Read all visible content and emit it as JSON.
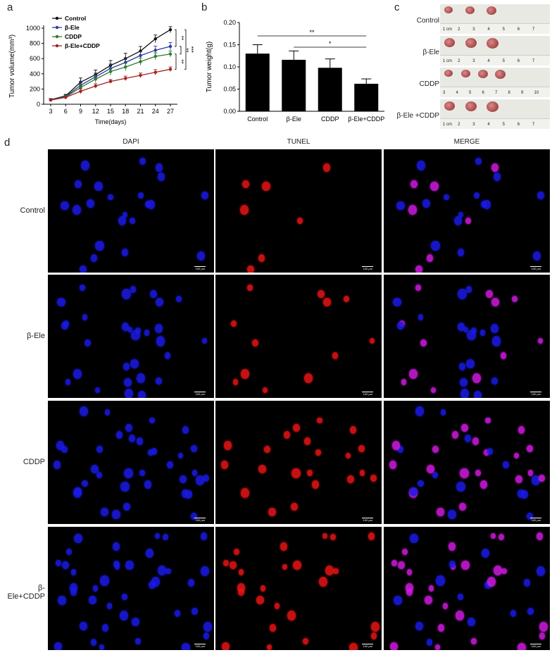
{
  "panels": {
    "a": "a",
    "b": "b",
    "c": "c",
    "d": "d"
  },
  "chart_data": [
    {
      "type": "line",
      "panel": "a",
      "ylabel": "Tumor volume(mm³)",
      "xlabel": "Time(days)",
      "x": [
        3,
        6,
        9,
        12,
        15,
        18,
        21,
        24,
        27
      ],
      "ylim": [
        0,
        1000
      ],
      "yticks": [
        0,
        200,
        400,
        600,
        800,
        1000
      ],
      "series": [
        {
          "name": "Control",
          "color": "#111111",
          "values": [
            60,
            110,
            290,
            390,
            510,
            600,
            700,
            860,
            980
          ],
          "err": [
            15,
            20,
            55,
            60,
            65,
            70,
            60,
            50,
            40
          ]
        },
        {
          "name": "β-Ele",
          "color": "#2a3aa0",
          "values": [
            60,
            100,
            250,
            360,
            470,
            550,
            640,
            710,
            760
          ],
          "err": [
            15,
            20,
            45,
            50,
            60,
            55,
            50,
            55,
            50
          ]
        },
        {
          "name": "CDDP",
          "color": "#2e7a2e",
          "values": [
            55,
            95,
            220,
            330,
            430,
            490,
            560,
            630,
            660
          ],
          "err": [
            15,
            20,
            40,
            45,
            50,
            50,
            45,
            45,
            40
          ]
        },
        {
          "name": "β-Ele+CDDP",
          "color": "#a32020",
          "values": [
            55,
            90,
            170,
            240,
            300,
            340,
            380,
            420,
            460
          ],
          "err": [
            10,
            15,
            30,
            30,
            25,
            30,
            30,
            35,
            30
          ]
        }
      ],
      "significance": [
        "**",
        "**",
        "**",
        "***"
      ]
    },
    {
      "type": "bar",
      "panel": "b",
      "ylabel": "Tumor weight(g)",
      "categories": [
        "Control",
        "β-Ele",
        "CDDP",
        "β-Ele+CDDP"
      ],
      "values": [
        0.13,
        0.116,
        0.098,
        0.062
      ],
      "err": [
        0.02,
        0.02,
        0.02,
        0.011
      ],
      "ylim": [
        0,
        0.2
      ],
      "yticks": [
        "0.00",
        "0.05",
        "0.10",
        "0.15",
        "0.20"
      ],
      "significance": [
        {
          "from": "Control",
          "to": "β-Ele+CDDP",
          "label": "**"
        },
        {
          "from": "β-Ele",
          "to": "β-Ele+CDDP",
          "label": "*"
        }
      ]
    }
  ],
  "tumor_photos": {
    "rows": [
      {
        "label": "Control",
        "ruler": [
          "1 cm",
          "2",
          "3",
          "4",
          "5",
          "6",
          "7"
        ],
        "tumors": 3
      },
      {
        "label": "β-Ele",
        "ruler": [
          "1 cm",
          "2",
          "3",
          "4",
          "5",
          "6",
          "7"
        ],
        "tumors": 3
      },
      {
        "label": "CDDP",
        "ruler": [
          "3",
          "4",
          "5",
          "6",
          "7",
          "8",
          "9",
          "10"
        ],
        "tumors": 4
      },
      {
        "label": "β-Ele +CDDP",
        "ruler": [
          "1 cm",
          "2",
          "3",
          "4",
          "5",
          "6",
          "7"
        ],
        "tumors": 3
      }
    ]
  },
  "microscopy": {
    "columns": [
      "DAPI",
      "TUNEL",
      "MERGE"
    ],
    "rows": [
      "Control",
      "β-Ele",
      "CDDP",
      "β-Ele+CDDP"
    ],
    "scale_label": "100 µm",
    "colors": {
      "dapi": "#1a1ae8",
      "tunel": "#e81414",
      "merge": "#d01ae0",
      "background": "#000000"
    }
  }
}
